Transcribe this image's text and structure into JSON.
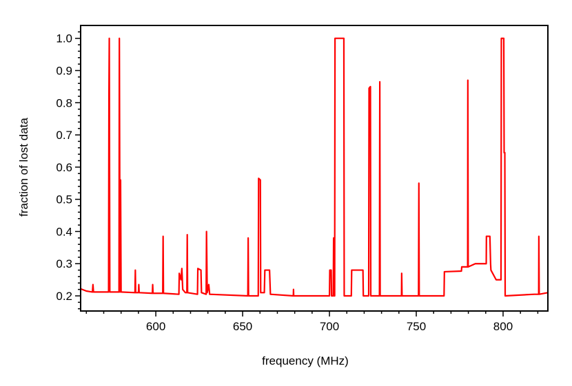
{
  "chart_data": {
    "type": "line",
    "x_label": "frequency (MHz)",
    "y_label": "fraction of lost data",
    "xlim": [
      556.7,
      825.8
    ],
    "ylim": [
      0.153,
      1.04
    ],
    "xticks": [
      600,
      650,
      700,
      750,
      800
    ],
    "xminorticks": [
      560,
      570,
      580,
      590,
      610,
      620,
      630,
      640,
      660,
      670,
      680,
      690,
      710,
      720,
      730,
      740,
      760,
      770,
      780,
      790,
      810,
      820
    ],
    "yticks": [
      {
        "value": 0.2,
        "label": "0.2"
      },
      {
        "value": 0.3,
        "label": "0.3"
      },
      {
        "value": 0.4,
        "label": "0.4"
      },
      {
        "value": 0.5,
        "label": "0.5"
      },
      {
        "value": 0.6,
        "label": "0.6"
      },
      {
        "value": 0.7,
        "label": "0.7"
      },
      {
        "value": 0.8,
        "label": "0.8"
      },
      {
        "value": 0.9,
        "label": "0.9"
      },
      {
        "value": 1.0,
        "label": "1.0"
      }
    ],
    "yminorticks": [
      0.16,
      0.18,
      0.22,
      0.24,
      0.26,
      0.28,
      0.32,
      0.34,
      0.36,
      0.38,
      0.42,
      0.44,
      0.46,
      0.48,
      0.52,
      0.54,
      0.56,
      0.58,
      0.62,
      0.64,
      0.66,
      0.68,
      0.72,
      0.74,
      0.76,
      0.78,
      0.82,
      0.84,
      0.86,
      0.88,
      0.92,
      0.94,
      0.96,
      0.98,
      1.02
    ],
    "series": [
      {
        "color": "#ff0000",
        "x": [
          556.7,
          560,
          563.5,
          563.8,
          564.1,
          572.8,
          573,
          573.2,
          573.5,
          578.8,
          579,
          579.4,
          579.7,
          580,
          588,
          588.2,
          588.4,
          590,
          590.2,
          590.4,
          598,
          598.2,
          598.4,
          604,
          604.2,
          604.4,
          613.3,
          613.5,
          614.5,
          615,
          615.5,
          617,
          617.9,
          618.1,
          618.3,
          624,
          624.2,
          626,
          626.3,
          629,
          629.2,
          629.6,
          630.5,
          631,
          653,
          653.2,
          653.4,
          659,
          659.2,
          660.2,
          660.4,
          662.5,
          662.8,
          665.5,
          666,
          679.2,
          679.3,
          679.4,
          700,
          700.2,
          701,
          701.2,
          702.2,
          702.4,
          702.8,
          703,
          703.2,
          708.3,
          708.5,
          712.6,
          712.8,
          719.3,
          719.5,
          722.6,
          722.8,
          723.6,
          723.8,
          728.8,
          729,
          729.2,
          741.5,
          741.6,
          741.8,
          751.3,
          751.5,
          751.7,
          766,
          766.2,
          776,
          776.2,
          779.6,
          779.7,
          779.9,
          784,
          790.3,
          790.4,
          792.4,
          792.8,
          793,
          796,
          798.8,
          799,
          800.4,
          800.6,
          801,
          801.2,
          818,
          820.5,
          820.6,
          820.8,
          825.8
        ],
        "values": [
          0.222,
          0.215,
          0.212,
          0.235,
          0.212,
          0.212,
          0.82,
          1.0,
          0.212,
          0.212,
          1.0,
          0.212,
          0.56,
          0.212,
          0.21,
          0.28,
          0.21,
          0.21,
          0.235,
          0.21,
          0.208,
          0.235,
          0.208,
          0.208,
          0.385,
          0.208,
          0.205,
          0.27,
          0.25,
          0.285,
          0.22,
          0.21,
          0.21,
          0.39,
          0.21,
          0.205,
          0.285,
          0.28,
          0.21,
          0.205,
          0.4,
          0.21,
          0.235,
          0.205,
          0.2,
          0.38,
          0.2,
          0.2,
          0.565,
          0.56,
          0.21,
          0.21,
          0.28,
          0.28,
          0.205,
          0.2,
          0.22,
          0.2,
          0.2,
          0.28,
          0.28,
          0.2,
          0.2,
          0.38,
          0.2,
          0.2,
          1.0,
          1.0,
          0.2,
          0.2,
          0.28,
          0.28,
          0.2,
          0.2,
          0.845,
          0.85,
          0.2,
          0.2,
          0.865,
          0.2,
          0.2,
          0.27,
          0.2,
          0.2,
          0.55,
          0.2,
          0.2,
          0.275,
          0.277,
          0.29,
          0.29,
          0.87,
          0.29,
          0.3,
          0.3,
          0.385,
          0.385,
          0.3,
          0.28,
          0.25,
          0.25,
          1.0,
          1.0,
          0.645,
          0.645,
          0.2,
          0.205,
          0.205,
          0.385,
          0.205,
          0.21
        ]
      }
    ]
  }
}
